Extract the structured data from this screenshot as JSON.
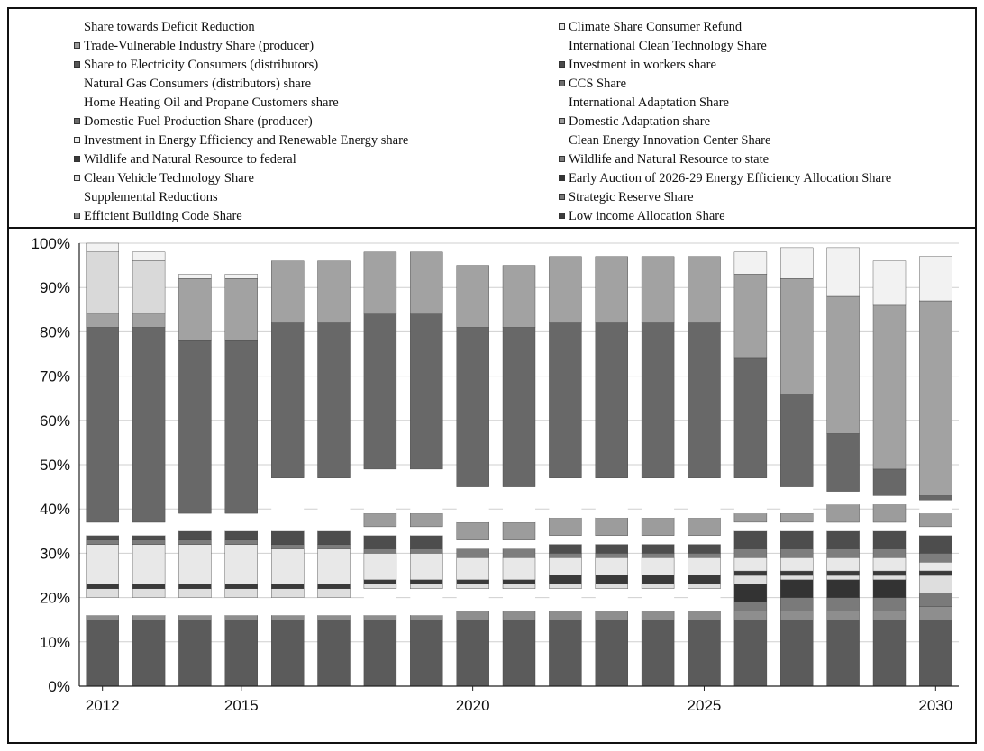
{
  "chart_data": {
    "type": "bar",
    "stacked": true,
    "percent_axis": true,
    "title": "",
    "xlabel": "",
    "ylabel": "",
    "ylim": [
      0,
      100
    ],
    "yticks": [
      "0%",
      "10%",
      "20%",
      "30%",
      "40%",
      "50%",
      "60%",
      "70%",
      "80%",
      "90%",
      "100%"
    ],
    "categories": [
      "2012",
      "2013",
      "2014",
      "2015",
      "2016",
      "2017",
      "2018",
      "2019",
      "2020",
      "2021",
      "2022",
      "2023",
      "2024",
      "2025",
      "2026",
      "2027",
      "2028",
      "2029",
      "2030"
    ],
    "xtick_labels": [
      "2012",
      "2015",
      "2020",
      "2025",
      "2030"
    ],
    "legend": [
      {
        "name": "Share towards Deficit Reduction",
        "color": "#ffffff"
      },
      {
        "name": "Climate Share Consumer Refund",
        "color": "#e4e4e4"
      },
      {
        "name": "Trade-Vulnerable Industry Share (producer)",
        "color": "#9a9a9a"
      },
      {
        "name": "International Clean Technology Share",
        "color": "#ffffff"
      },
      {
        "name": "Share to Electricity Consumers (distributors)",
        "color": "#555555"
      },
      {
        "name": "Investment in workers share",
        "color": "#4a4a4a"
      },
      {
        "name": "Natural Gas Consumers (distributors) share",
        "color": "#ffffff"
      },
      {
        "name": "CCS Share",
        "color": "#6d6d6d"
      },
      {
        "name": "Home Heating Oil and Propane Customers share",
        "color": "#ffffff"
      },
      {
        "name": "International Adaptation Share",
        "color": "#ffffff"
      },
      {
        "name": "Domestic Fuel Production Share (producer)",
        "color": "#6a6a6a"
      },
      {
        "name": "Domestic Adaptation share",
        "color": "#9c9c9c"
      },
      {
        "name": "Investment in Energy Efficiency and Renewable Energy share",
        "color": "#ececec"
      },
      {
        "name": "Clean Energy Innovation Center Share",
        "color": "#ffffff"
      },
      {
        "name": "Wildlife and Natural Resource to federal",
        "color": "#3a3a3a"
      },
      {
        "name": "Wildlife and Natural Resource to state",
        "color": "#7d7d7d"
      },
      {
        "name": "Clean Vehicle Technology Share",
        "color": "#dedede"
      },
      {
        "name": "Early Auction of 2026-29 Energy Efficiency Allocation Share",
        "color": "#333333"
      },
      {
        "name": "Supplemental Reductions",
        "color": "#ffffff"
      },
      {
        "name": "Strategic Reserve Share",
        "color": "#7a7a7a"
      },
      {
        "name": "Efficient Building Code Share",
        "color": "#8e8e8e"
      },
      {
        "name": "Low income Allocation Share",
        "color": "#3c3c3c"
      }
    ],
    "series": [
      {
        "name": "Low income Allocation Share",
        "color": "#5b5b5b",
        "values": [
          15,
          15,
          15,
          15,
          15,
          15,
          15,
          15,
          15,
          15,
          15,
          15,
          15,
          15,
          15,
          15,
          15,
          15,
          15
        ]
      },
      {
        "name": "Efficient Building Code Share",
        "color": "#8e8e8e",
        "values": [
          1,
          1,
          1,
          1,
          1,
          1,
          1,
          1,
          2,
          2,
          2,
          2,
          2,
          2,
          2,
          2,
          2,
          2,
          3
        ]
      },
      {
        "name": "Supplemental Reductions",
        "color": "#ffffff",
        "values": [
          4,
          4,
          4,
          4,
          4,
          4,
          6,
          6,
          5,
          5,
          5,
          5,
          5,
          5,
          0,
          0,
          0,
          0,
          0
        ]
      },
      {
        "name": "Strategic Reserve Share",
        "color": "#7a7a7a",
        "values": [
          0,
          0,
          0,
          0,
          0,
          0,
          0,
          0,
          0,
          0,
          0,
          0,
          0,
          0,
          2,
          3,
          3,
          3,
          3
        ]
      },
      {
        "name": "Early Auction of 2026-29 Energy Efficiency Allocation Share",
        "color": "#333333",
        "values": [
          0,
          0,
          0,
          0,
          0,
          0,
          0,
          0,
          0,
          0,
          0,
          0,
          0,
          0,
          4,
          4,
          4,
          4,
          0
        ]
      },
      {
        "name": "Clean Vehicle Technology Share",
        "color": "#dedede",
        "values": [
          2,
          2,
          2,
          2,
          2,
          2,
          1,
          1,
          1,
          1,
          1,
          1,
          1,
          1,
          2,
          1,
          1,
          1,
          4
        ]
      },
      {
        "name": "Wildlife and Natural Resource to federal",
        "color": "#3a3a3a",
        "values": [
          1,
          1,
          1,
          1,
          1,
          1,
          1,
          1,
          1,
          1,
          2,
          2,
          2,
          2,
          1,
          1,
          1,
          1,
          1
        ]
      },
      {
        "name": "Investment in Energy Efficiency and Renewable Energy share",
        "color": "#e8e8e8",
        "values": [
          9,
          9,
          9,
          9,
          8,
          8,
          6,
          6,
          5,
          5,
          4,
          4,
          4,
          4,
          3,
          3,
          3,
          3,
          2
        ]
      },
      {
        "name": "Wildlife and Natural Resource to state",
        "color": "#7d7d7d",
        "values": [
          1,
          1,
          1,
          1,
          1,
          1,
          1,
          1,
          2,
          2,
          1,
          1,
          1,
          1,
          2,
          2,
          2,
          2,
          2
        ]
      },
      {
        "name": "Domestic Fuel Production Share (producer)",
        "color": "#4d4d4d",
        "values": [
          1,
          1,
          2,
          2,
          3,
          3,
          3,
          3,
          0,
          0,
          2,
          2,
          2,
          2,
          4,
          4,
          4,
          4,
          4
        ]
      },
      {
        "name": "Home Heating Oil and Propane Customers share",
        "color": "#ffffff",
        "values": [
          1,
          1,
          2,
          2,
          2,
          2,
          2,
          2,
          2,
          2,
          2,
          2,
          2,
          2,
          2,
          2,
          2,
          2,
          2
        ]
      },
      {
        "name": "Domestic Adaptation share",
        "color": "#9c9c9c",
        "values": [
          0,
          0,
          0,
          0,
          0,
          0,
          3,
          3,
          4,
          4,
          4,
          4,
          4,
          4,
          2,
          2,
          4,
          4,
          3
        ]
      },
      {
        "name": "Natural Gas Consumers (distributors) share",
        "color": "#ffffff",
        "values": [
          2,
          2,
          2,
          2,
          10,
          10,
          10,
          10,
          8,
          8,
          9,
          9,
          9,
          9,
          8,
          6,
          3,
          2,
          3
        ]
      },
      {
        "name": "Share to Electricity Consumers (distributors)",
        "color": "#686868",
        "values": [
          44,
          44,
          39,
          39,
          35,
          35,
          35,
          35,
          36,
          36,
          35,
          35,
          35,
          35,
          27,
          21,
          13,
          6,
          1
        ]
      },
      {
        "name": "Climate Share Consumer Refund",
        "color": "#a2a2a2",
        "values": [
          3,
          3,
          14,
          14,
          14,
          14,
          14,
          14,
          14,
          14,
          15,
          15,
          15,
          15,
          19,
          26,
          31,
          37,
          44
        ]
      },
      {
        "name": "Trade-Vulnerable Industry Share (producer)",
        "color": "#d9d9d9",
        "values": [
          14,
          12,
          0,
          0,
          0,
          0,
          0,
          0,
          0,
          0,
          0,
          0,
          0,
          0,
          0,
          0,
          0,
          0,
          0
        ]
      },
      {
        "name": "Share towards Deficit Reduction",
        "color": "#f2f2f2",
        "values": [
          2,
          2,
          1,
          1,
          0,
          0,
          0,
          0,
          0,
          0,
          0,
          0,
          0,
          0,
          5,
          7,
          11,
          10,
          10
        ]
      }
    ]
  }
}
